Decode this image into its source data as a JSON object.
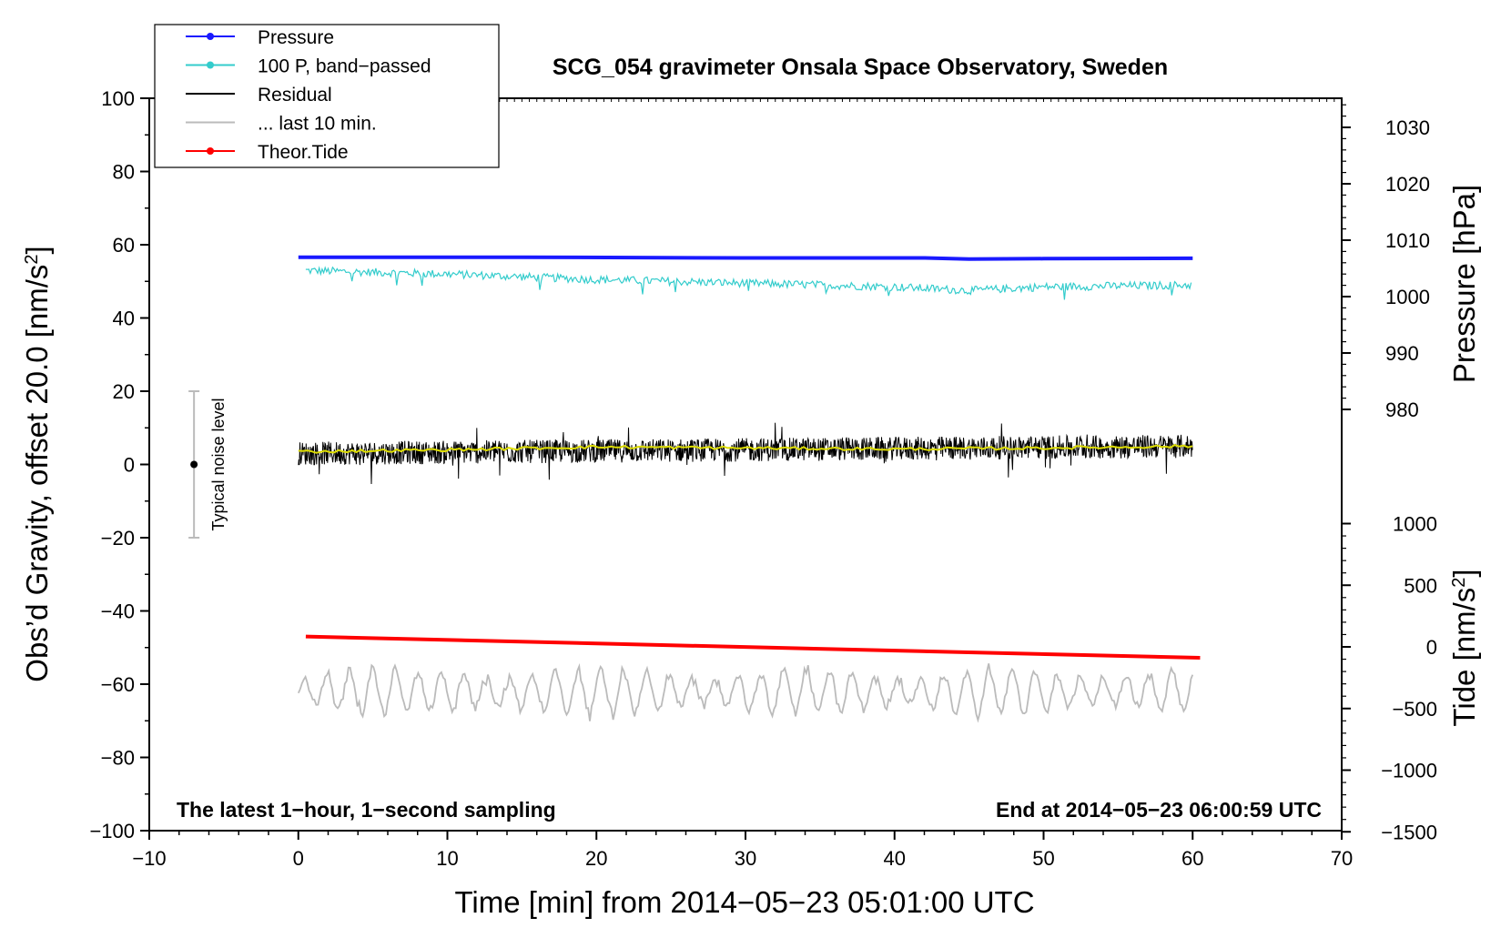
{
  "chart_data": {
    "type": "line",
    "title": "SCG_054 gravimeter Onsala Space Observatory, Sweden",
    "xlabel": "Time [min] from 2014−05−23 05:01:00 UTC",
    "ylabel_left": "Obs’d Gravity, offset 20.0 [nm/s",
    "ylabel_left_sup": "2",
    "ylabel_left_end": "]",
    "ylabel_right_pressure": "Pressure [hPa]",
    "ylabel_right_tide": "Tide [nm/s",
    "ylabel_right_tide_sup": "2",
    "ylabel_right_tide_end": "]",
    "xlim": [
      -10,
      70
    ],
    "ylim": [
      -100,
      100
    ],
    "pressure_axis_range": [
      980,
      1030
    ],
    "tide_axis_range": [
      -1500,
      1000
    ],
    "x_ticks": [
      "−10",
      "0",
      "10",
      "20",
      "30",
      "40",
      "50",
      "60",
      "70"
    ],
    "y_ticks": [
      "−100",
      "−80",
      "−60",
      "−40",
      "−20",
      "0",
      "20",
      "40",
      "60",
      "80",
      "100"
    ],
    "pressure_ticks": [
      "980",
      "990",
      "1000",
      "1010",
      "1020",
      "1030"
    ],
    "tide_ticks": [
      "−1500",
      "−1000",
      "−500",
      "0",
      "500",
      "1000"
    ],
    "legend_position": "top-left",
    "legend": [
      {
        "label": "Pressure",
        "color": "#1a1aff",
        "marker": true
      },
      {
        "label": "100 P, band−passed",
        "color": "#33cccc",
        "marker": true
      },
      {
        "label": "Residual",
        "color": "#000000",
        "marker": false
      },
      {
        "label": "... last 10 min.",
        "color": "#bbbbbb",
        "marker": false
      },
      {
        "label": "Theor.Tide",
        "color": "#ff0000",
        "marker": true
      }
    ],
    "series": [
      {
        "name": "Pressure",
        "color": "#1a1aff",
        "x": [
          0,
          15,
          30,
          42,
          45,
          50,
          60
        ],
        "y": [
          56.6,
          56.6,
          56.4,
          56.4,
          56.1,
          56.2,
          56.3
        ]
      },
      {
        "name": "100 P, band-passed",
        "color": "#33cccc",
        "x": [
          0,
          10,
          20,
          30,
          40,
          45,
          50,
          60
        ],
        "y": [
          53,
          52,
          50.5,
          49.5,
          48.5,
          47.5,
          48.5,
          49
        ]
      },
      {
        "name": "Residual",
        "color": "#000000",
        "x": [
          0,
          60
        ],
        "y": [
          3,
          5
        ],
        "spread": 4
      },
      {
        "name": "Residual smoothed",
        "color": "#dddd00",
        "x": [
          0,
          10,
          20,
          30,
          40,
          50,
          60
        ],
        "y": [
          3.5,
          4,
          4.8,
          4.5,
          4.2,
          4.5,
          5
        ]
      },
      {
        "name": "... last 10 min.",
        "color": "#bbbbbb",
        "x": [
          0,
          60
        ],
        "y": [
          -62,
          -62
        ],
        "spread": 6
      },
      {
        "name": "Theor.Tide",
        "color": "#ff0000",
        "x": [
          0.5,
          60.5
        ],
        "y": [
          -47,
          -52.8
        ]
      }
    ],
    "noise_bar": {
      "x": -7,
      "y": 0,
      "low": -20,
      "high": 20,
      "label": "Typical noise level"
    },
    "note_left": "The latest 1−hour, 1−second sampling",
    "note_right": "End at 2014−05−23 06:00:59 UTC"
  }
}
